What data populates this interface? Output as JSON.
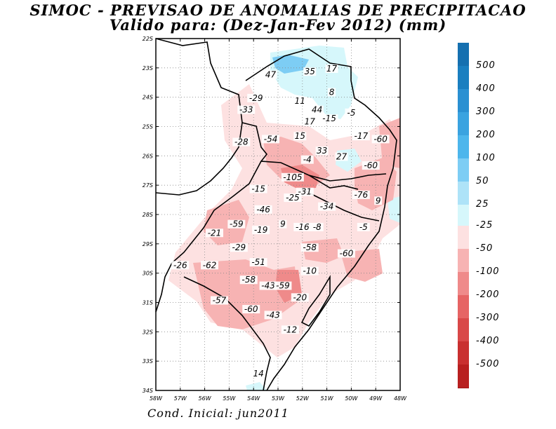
{
  "header": {
    "title": "SIMOC - PREVISAO DE ANOMALIAS DE PRECIPITACAO",
    "subtitle": "Valido para: (Dez-Jan-Fev 2012) (mm)"
  },
  "footer": {
    "text": "Cond. Inicial: jun2011"
  },
  "map": {
    "lat_ticks": [
      "22S",
      "23S",
      "24S",
      "25S",
      "26S",
      "27S",
      "28S",
      "29S",
      "30S",
      "31S",
      "32S",
      "33S",
      "34S"
    ],
    "lon_ticks": [
      "58W",
      "57W",
      "56W",
      "55W",
      "54W",
      "53W",
      "52W",
      "51W",
      "50W",
      "49W",
      "48W"
    ],
    "lon_range": [
      -58,
      -48
    ],
    "lat_range": [
      -34,
      -22
    ],
    "value_labels": [
      {
        "text": "47",
        "lon": -53.3,
        "lat": -23.3
      },
      {
        "text": "35",
        "lon": -51.7,
        "lat": -23.2
      },
      {
        "text": "17",
        "lon": -50.8,
        "lat": -23.1
      },
      {
        "text": "8",
        "lon": -50.8,
        "lat": -23.9
      },
      {
        "text": "-29",
        "lon": -53.9,
        "lat": -24.1
      },
      {
        "text": "11",
        "lon": -52.1,
        "lat": -24.2
      },
      {
        "text": "-33",
        "lon": -54.3,
        "lat": -24.5
      },
      {
        "text": "44",
        "lon": -51.4,
        "lat": -24.5
      },
      {
        "text": "-5",
        "lon": -50.0,
        "lat": -24.6
      },
      {
        "text": "-15",
        "lon": -50.9,
        "lat": -24.8
      },
      {
        "text": "17",
        "lon": -51.7,
        "lat": -24.9
      },
      {
        "text": "15",
        "lon": -52.1,
        "lat": -25.4
      },
      {
        "text": "-54",
        "lon": -53.3,
        "lat": -25.5
      },
      {
        "text": "-17",
        "lon": -49.6,
        "lat": -25.4
      },
      {
        "text": "-60",
        "lon": -48.8,
        "lat": -25.5
      },
      {
        "text": "-28",
        "lon": -54.5,
        "lat": -25.6
      },
      {
        "text": "33",
        "lon": -51.2,
        "lat": -25.9
      },
      {
        "text": "27",
        "lon": -50.4,
        "lat": -26.1
      },
      {
        "text": "-4",
        "lon": -51.8,
        "lat": -26.2
      },
      {
        "text": "-60",
        "lon": -49.2,
        "lat": -26.4
      },
      {
        "text": "-105",
        "lon": -52.4,
        "lat": -26.8
      },
      {
        "text": "-15",
        "lon": -53.8,
        "lat": -27.2
      },
      {
        "text": "-31",
        "lon": -51.9,
        "lat": -27.3
      },
      {
        "text": "-25",
        "lon": -52.4,
        "lat": -27.5
      },
      {
        "text": "-76",
        "lon": -49.6,
        "lat": -27.4
      },
      {
        "text": "9",
        "lon": -48.9,
        "lat": -27.6
      },
      {
        "text": "-34",
        "lon": -51.0,
        "lat": -27.8
      },
      {
        "text": "-46",
        "lon": -53.6,
        "lat": -27.9
      },
      {
        "text": "9",
        "lon": -52.8,
        "lat": -28.4
      },
      {
        "text": "-16",
        "lon": -52.0,
        "lat": -28.5
      },
      {
        "text": "-8",
        "lon": -51.4,
        "lat": -28.5
      },
      {
        "text": "-5",
        "lon": -49.5,
        "lat": -28.5
      },
      {
        "text": "-59",
        "lon": -54.7,
        "lat": -28.4
      },
      {
        "text": "-19",
        "lon": -53.7,
        "lat": -28.6
      },
      {
        "text": "-21",
        "lon": -55.6,
        "lat": -28.7
      },
      {
        "text": "-58",
        "lon": -51.7,
        "lat": -29.2
      },
      {
        "text": "-29",
        "lon": -54.6,
        "lat": -29.2
      },
      {
        "text": "-60",
        "lon": -50.2,
        "lat": -29.4
      },
      {
        "text": "-51",
        "lon": -53.8,
        "lat": -29.7
      },
      {
        "text": "-26",
        "lon": -57.0,
        "lat": -29.8
      },
      {
        "text": "-62",
        "lon": -55.8,
        "lat": -29.8
      },
      {
        "text": "-10",
        "lon": -51.7,
        "lat": -30.0
      },
      {
        "text": "-58",
        "lon": -54.2,
        "lat": -30.3
      },
      {
        "text": "-43",
        "lon": -53.4,
        "lat": -30.5
      },
      {
        "text": "-59",
        "lon": -52.8,
        "lat": -30.5
      },
      {
        "text": "-20",
        "lon": -52.1,
        "lat": -30.9
      },
      {
        "text": "-57",
        "lon": -55.4,
        "lat": -31.0
      },
      {
        "text": "-60",
        "lon": -54.1,
        "lat": -31.3
      },
      {
        "text": "-43",
        "lon": -53.2,
        "lat": -31.5
      },
      {
        "text": "-12",
        "lon": -52.5,
        "lat": -32.0
      },
      {
        "text": "14",
        "lon": -53.8,
        "lat": -33.5
      }
    ]
  },
  "legend": {
    "positive": [
      {
        "label": "500",
        "color": "#1a7fc0"
      },
      {
        "label": "400",
        "color": "#2a90d2"
      },
      {
        "label": "300",
        "color": "#3aa3e0"
      },
      {
        "label": "200",
        "color": "#4db6ec"
      },
      {
        "label": "100",
        "color": "#7dcdf4"
      },
      {
        "label": "50",
        "color": "#aee3f8"
      },
      {
        "label": "25",
        "color": "#d6f7fb"
      }
    ],
    "negative": [
      {
        "label": "-25",
        "color": "#fde1e1"
      },
      {
        "label": "-50",
        "color": "#f7b3b3"
      },
      {
        "label": "-100",
        "color": "#ef8a8a"
      },
      {
        "label": "-200",
        "color": "#e66464"
      },
      {
        "label": "-300",
        "color": "#d94848"
      },
      {
        "label": "-400",
        "color": "#c93030"
      },
      {
        "label": "-500",
        "color": "#b82020"
      }
    ],
    "top_color": "#1570b0",
    "bottom_color": "#a01818"
  }
}
